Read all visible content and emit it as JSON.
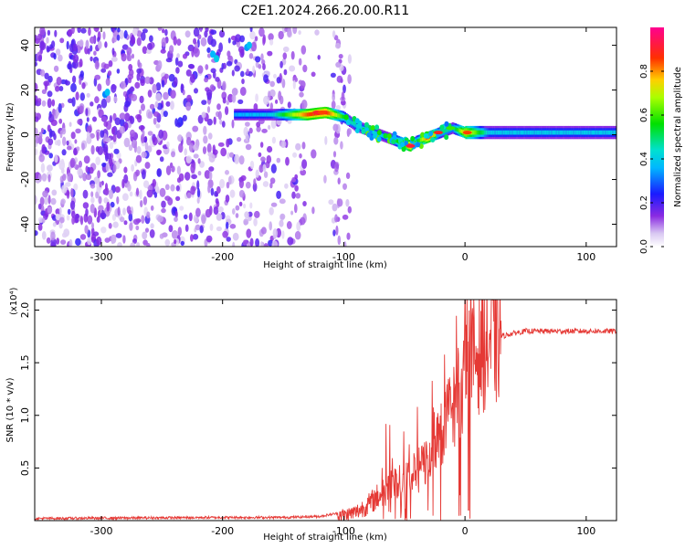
{
  "title": "C2E1.2024.266.20.00.R11",
  "chart_data": [
    {
      "type": "heatmap",
      "xlabel": "Height of straight line (km)",
      "ylabel": "Frequency (Hz)",
      "xlim": [
        -355,
        125
      ],
      "ylim": [
        -50,
        48
      ],
      "xticks": [
        -300,
        -200,
        -100,
        0,
        100
      ],
      "yticks": [
        -40,
        -20,
        0,
        20,
        40
      ],
      "colorbar": {
        "label": "Normalized spectral amplitude",
        "range": [
          0,
          1
        ],
        "ticks": [
          0.0,
          0.2,
          0.4,
          0.6,
          0.8
        ],
        "tick_labels": [
          "0.0",
          "0.2",
          "0.4",
          "0.6",
          "0.8"
        ],
        "colormap": "rainbow (white-violet-blue-cyan-green-yellow-red-magenta)"
      },
      "ridge": {
        "x": [
          -190,
          -160,
          -130,
          -115,
          -100,
          -90,
          -80,
          -70,
          -60,
          -50,
          -45,
          -40,
          -30,
          -20,
          -10,
          0,
          20,
          60,
          100,
          125
        ],
        "y": [
          9,
          9,
          9,
          10,
          8,
          4,
          2,
          0,
          -2,
          -4,
          -5,
          -3,
          -1,
          1,
          3,
          1,
          1,
          1,
          1,
          1
        ],
        "amplitude": [
          0.35,
          0.4,
          0.85,
          0.9,
          0.55,
          0.4,
          0.45,
          0.4,
          0.45,
          0.7,
          0.9,
          0.5,
          0.9,
          0.5,
          0.45,
          0.8,
          0.4,
          0.4,
          0.4,
          0.4
        ]
      },
      "noise_region_x": [
        -355,
        -95
      ]
    },
    {
      "type": "line",
      "xlabel": "Height of straight line (km)",
      "ylabel": "SNR (10 * v/v)",
      "yscale_label": "(x10⁴)",
      "xlim": [
        -355,
        125
      ],
      "ylim": [
        0,
        2.1
      ],
      "xticks": [
        -300,
        -200,
        -100,
        0,
        100
      ],
      "yticks": [
        0.5,
        1.0,
        1.5,
        2.0
      ],
      "ytick_labels": [
        "0.5",
        "1.0",
        "1.5",
        "2.0"
      ],
      "series": [
        {
          "color": "#e53935",
          "x": [
            -355,
            -200,
            -150,
            -120,
            -105,
            -100,
            -90,
            -80,
            -70,
            -60,
            -50,
            -40,
            -30,
            -25,
            -20,
            -15,
            -10,
            -5,
            0,
            5,
            10,
            20,
            30,
            40,
            50,
            60,
            80,
            100,
            125
          ],
          "y": [
            0.02,
            0.03,
            0.03,
            0.04,
            0.07,
            0.05,
            0.08,
            0.15,
            0.25,
            0.35,
            0.4,
            0.45,
            0.6,
            0.8,
            0.85,
            0.95,
            1.1,
            1.25,
            1.35,
            1.5,
            1.6,
            1.7,
            1.75,
            1.78,
            1.8,
            1.8,
            1.8,
            1.8,
            1.8
          ]
        }
      ]
    }
  ]
}
